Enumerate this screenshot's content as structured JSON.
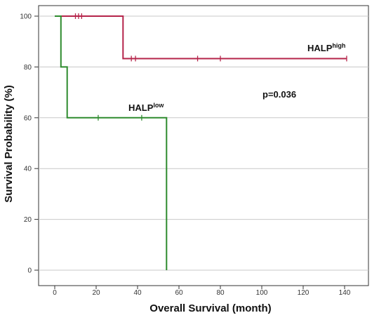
{
  "chart_data": {
    "type": "line",
    "subtype": "kaplan-meier",
    "title": "",
    "xlabel": "Overall Survival (month)",
    "ylabel": "Survival Probability (%)",
    "xlim": [
      0,
      140
    ],
    "ylim": [
      0,
      100
    ],
    "xticks": [
      0,
      20,
      40,
      60,
      80,
      100,
      120,
      140
    ],
    "yticks": [
      0,
      20,
      40,
      60,
      80,
      100
    ],
    "grid": "horizontal",
    "legend": "none",
    "series": [
      {
        "name_base": "HALP",
        "name_sup": "high",
        "color": "#b5244a",
        "steps": [
          {
            "x": 0,
            "y": 100
          },
          {
            "x": 33,
            "y": 100
          },
          {
            "x": 33,
            "y": 83.3
          },
          {
            "x": 141,
            "y": 83.3
          }
        ],
        "censored": [
          {
            "x": 10,
            "y": 100
          },
          {
            "x": 11.5,
            "y": 100
          },
          {
            "x": 13,
            "y": 100
          },
          {
            "x": 37,
            "y": 83.3
          },
          {
            "x": 39,
            "y": 83.3
          },
          {
            "x": 69,
            "y": 83.3
          },
          {
            "x": 80,
            "y": 83.3
          },
          {
            "x": 141,
            "y": 83.3
          }
        ]
      },
      {
        "name_base": "HALP",
        "name_sup": "low",
        "color": "#2e8b2e",
        "steps": [
          {
            "x": 0,
            "y": 100
          },
          {
            "x": 3,
            "y": 100
          },
          {
            "x": 3,
            "y": 80
          },
          {
            "x": 6,
            "y": 80
          },
          {
            "x": 6,
            "y": 60
          },
          {
            "x": 54,
            "y": 60
          },
          {
            "x": 54,
            "y": 0
          }
        ],
        "censored": [
          {
            "x": 21,
            "y": 60
          },
          {
            "x": 42,
            "y": 60
          }
        ]
      }
    ],
    "annotations": [
      {
        "text": "p=0.036"
      }
    ]
  }
}
